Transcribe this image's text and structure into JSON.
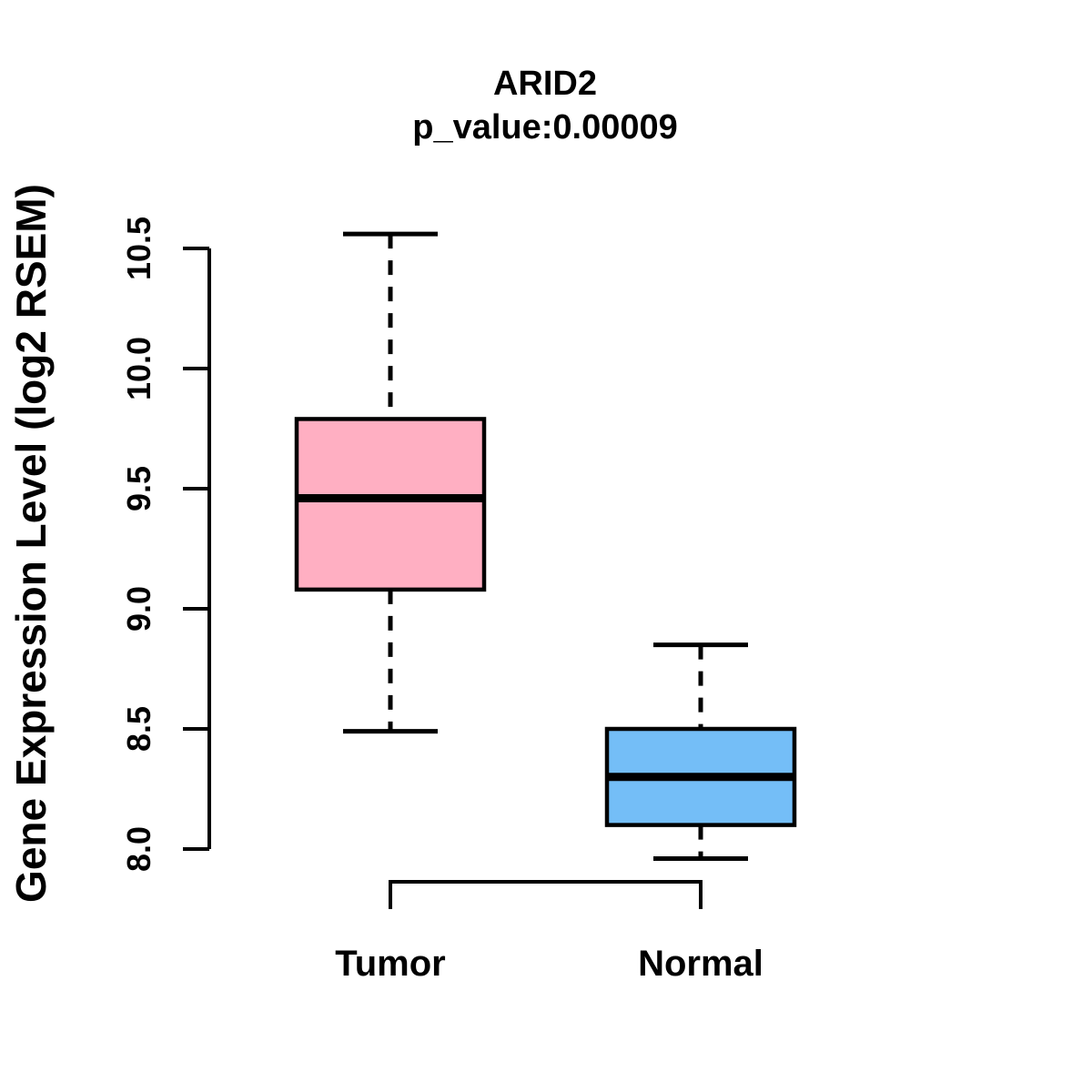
{
  "figure": {
    "background": "#ffffff",
    "line_color": "#000000"
  },
  "chart_data": {
    "type": "boxplot",
    "title": "ARID2",
    "subtitle": "p_value:0.00009",
    "ylabel": "Gene Expression Level (log2 RSEM)",
    "xlabel": "",
    "ylim": [
      7.9,
      10.6
    ],
    "yticks": [
      8.0,
      8.5,
      9.0,
      9.5,
      10.0,
      10.5
    ],
    "ytick_labels": [
      "8.0",
      "8.5",
      "9.0",
      "9.5",
      "10.0",
      "10.5"
    ],
    "grid": false,
    "legend": "none",
    "groups": [
      {
        "label": "Tumor",
        "box_color": "#FFAFC2",
        "border_color": "#000000",
        "lower_whisker": 8.49,
        "q1": 9.08,
        "median": 9.46,
        "q3": 9.79,
        "upper_whisker": 10.56
      },
      {
        "label": "Normal",
        "box_color": "#74BEF7",
        "border_color": "#000000",
        "lower_whisker": 7.96,
        "q1": 8.1,
        "median": 8.3,
        "q3": 8.5,
        "upper_whisker": 8.85
      }
    ],
    "comparison_bracket": {
      "connects": [
        "Tumor",
        "Normal"
      ]
    }
  }
}
